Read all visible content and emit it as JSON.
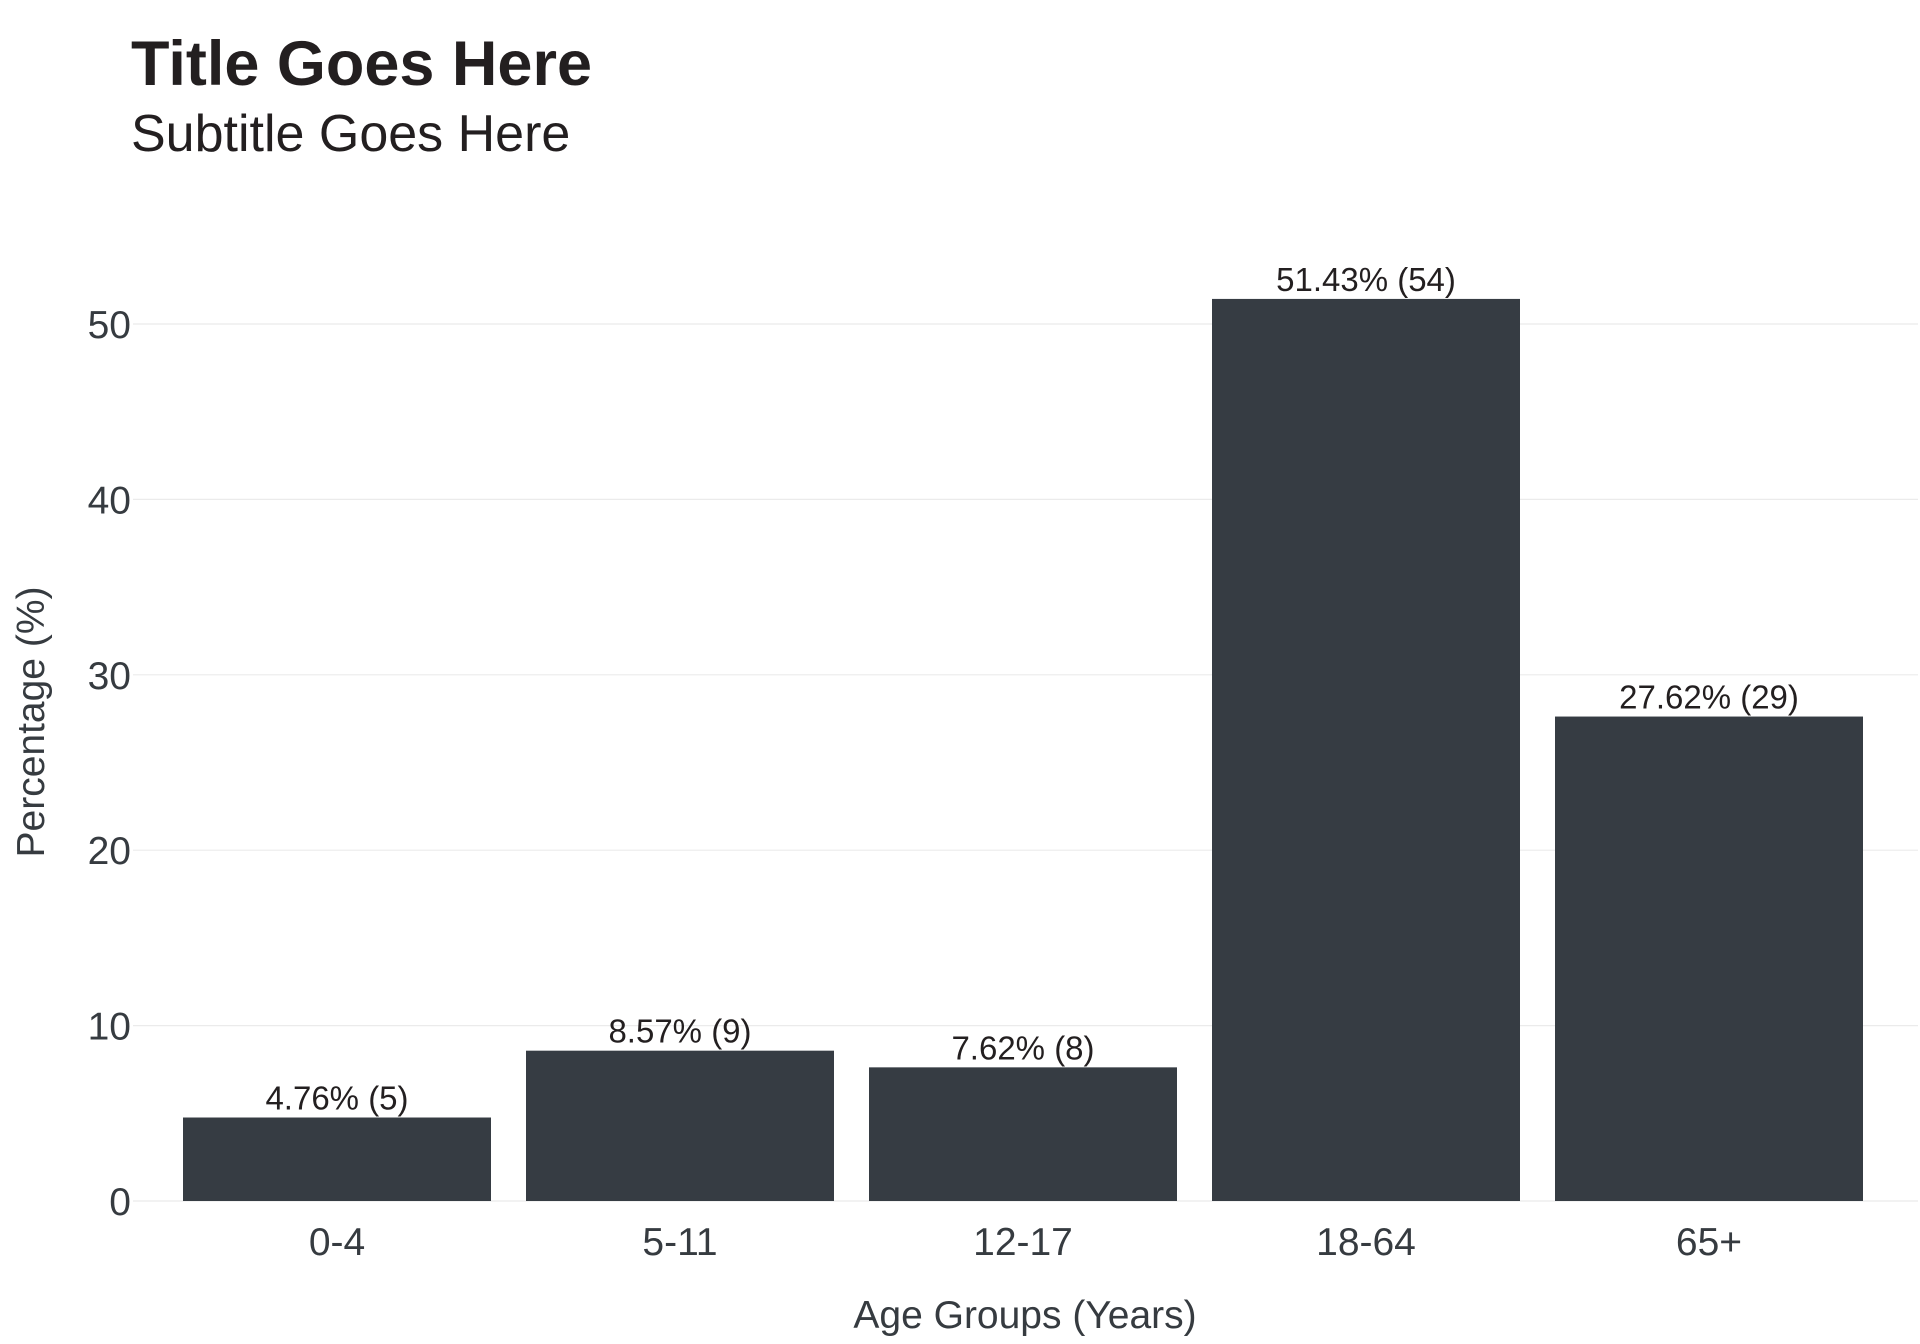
{
  "chart_data": {
    "type": "bar",
    "title": "Title Goes Here",
    "subtitle": "Subtitle Goes Here",
    "xlabel": "Age Groups (Years)",
    "ylabel": "Percentage (%)",
    "categories": [
      "0-4",
      "5-11",
      "12-17",
      "18-64",
      "65+"
    ],
    "values": [
      4.76,
      8.57,
      7.62,
      51.43,
      27.62
    ],
    "counts": [
      5,
      9,
      8,
      54,
      29
    ],
    "data_labels": [
      "4.76% (5)",
      "8.57% (9)",
      "7.62% (8)",
      "51.43% (54)",
      "27.62% (29)"
    ],
    "yticks": [
      0,
      10,
      20,
      30,
      40,
      50
    ],
    "ylim": [
      0,
      54
    ],
    "grid": true,
    "legend": "none",
    "bar_color": "#363c43",
    "grid_color": "#ebebeb"
  }
}
